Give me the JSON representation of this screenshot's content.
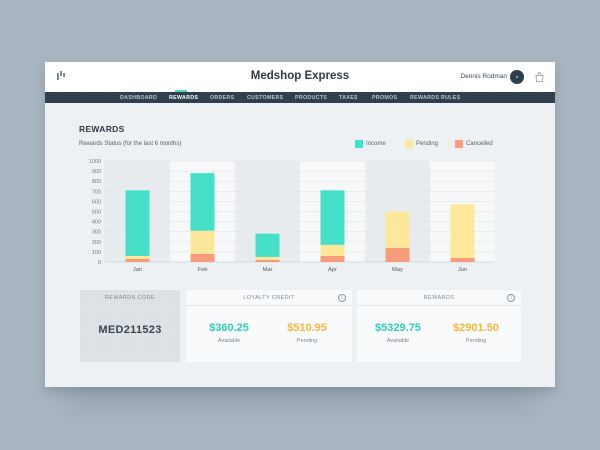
{
  "app": {
    "title": "Medshop Express",
    "user_name": "Dennis Rodman"
  },
  "nav": {
    "items": [
      {
        "label": "DASHBOARD",
        "active": false
      },
      {
        "label": "REWARDS",
        "active": true
      },
      {
        "label": "ORDERS",
        "active": false
      },
      {
        "label": "CUSTOMERS",
        "active": false
      },
      {
        "label": "PRODUCTS",
        "active": false
      },
      {
        "label": "TAXES",
        "active": false
      },
      {
        "label": "PROMOS",
        "active": false
      },
      {
        "label": "REWARDS RULES",
        "active": false
      }
    ]
  },
  "page": {
    "title": "REWARDS",
    "chart_subtitle": "Rewards Status (for the last 6 months)"
  },
  "legend": [
    {
      "label": "Income",
      "color": "#46e0c8"
    },
    {
      "label": "Pending",
      "color": "#fde79a"
    },
    {
      "label": "Cancelled",
      "color": "#f79c7a"
    }
  ],
  "chart_data": {
    "type": "bar",
    "stacked": true,
    "categories": [
      "Jan",
      "Feb",
      "Mar",
      "Apr",
      "May",
      "Jun"
    ],
    "series": [
      {
        "name": "Cancelled",
        "color": "#f79c7a",
        "values": [
          30,
          80,
          20,
          60,
          140,
          40
        ]
      },
      {
        "name": "Pending",
        "color": "#fde79a",
        "values": [
          30,
          230,
          30,
          110,
          360,
          530
        ]
      },
      {
        "name": "Income",
        "color": "#46e0c8",
        "values": [
          650,
          570,
          230,
          540,
          0,
          0
        ]
      }
    ],
    "y_ticks": [
      "0",
      "100",
      "200",
      "300",
      "400",
      "500",
      "600",
      "700",
      "800",
      "900",
      "1000"
    ],
    "ylim": [
      0,
      1000
    ],
    "grid": true
  },
  "cards": {
    "code": {
      "label": "REWARDS CODE",
      "value": "MED211523"
    },
    "loyalty": {
      "label": "LOYALTY CREDIT",
      "available": "$360.25",
      "available_label": "Available",
      "pending": "$510.95",
      "pending_label": "Pending"
    },
    "rewards": {
      "label": "REWARDS",
      "available": "$5329.75",
      "available_label": "Available",
      "pending": "$2901.50",
      "pending_label": "Pending"
    }
  }
}
